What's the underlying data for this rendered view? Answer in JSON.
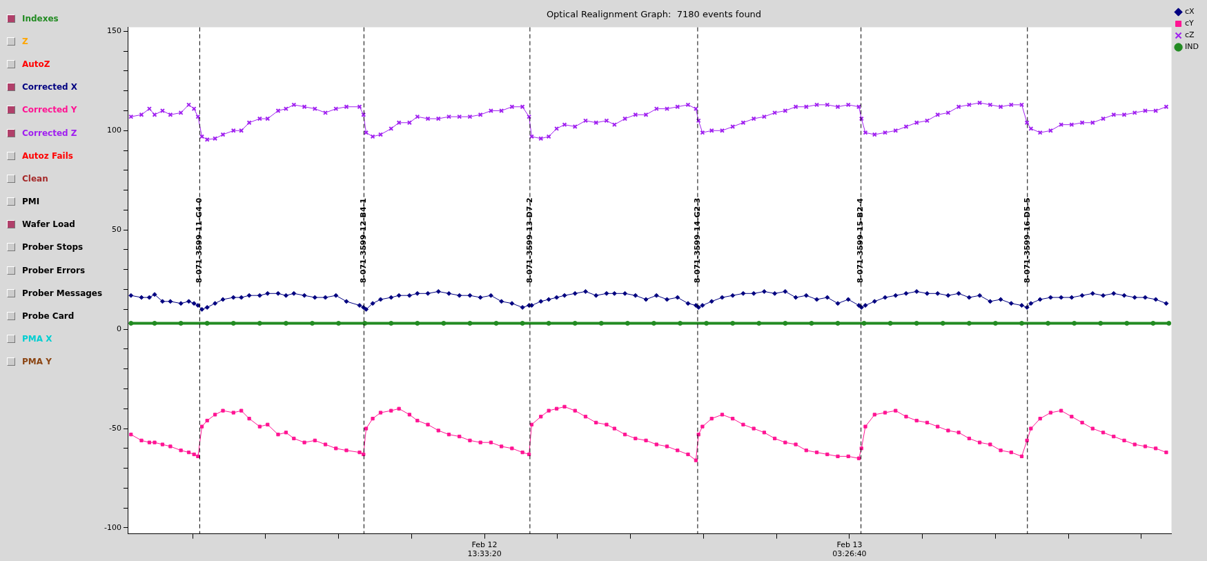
{
  "chart_data": {
    "type": "line",
    "title": "Optical Realignment Graph:  7180 events found",
    "annotations": [
      "Indexes",
      "Z",
      "AutoZ",
      "Corrected X",
      "Corrected Y",
      "Corrected Z",
      "Autoz Fails",
      "Clean",
      "PMI",
      "Wafer Load",
      "Prober Stops",
      "Prober Errors",
      "Prober Messages",
      "Probe Card",
      "PMA X",
      "PMA Y"
    ],
    "x": [
      "--02-12T00:06",
      "--02-12T00:30",
      "--02-12T00:48",
      "--02-12T01:00",
      "--02-12T01:18",
      "--02-12T01:36",
      "--02-12T02:00",
      "--02-12T02:18",
      "--02-12T02:30",
      "--02-12T02:39",
      "--02-12T02:48",
      "--02-12T03:00",
      "--02-12T03:18",
      "--02-12T03:36",
      "--02-12T04:00",
      "--02-12T04:18",
      "--02-12T04:36",
      "--02-12T05:00",
      "--02-12T05:18",
      "--02-12T05:42",
      "--02-12T06:00",
      "--02-12T06:18",
      "--02-12T06:42",
      "--02-12T07:06",
      "--02-12T07:30",
      "--02-12T07:54",
      "--02-12T08:18",
      "--02-12T08:48",
      "--02-12T08:57",
      "--02-12T09:03",
      "--02-12T09:18",
      "--02-12T09:36",
      "--02-12T10:00",
      "--02-12T10:18",
      "--02-12T10:42",
      "--02-12T11:00",
      "--02-12T11:24",
      "--02-12T11:48",
      "--02-12T12:12",
      "--02-12T12:36",
      "--02-12T13:00",
      "--02-12T13:24",
      "--02-12T13:48",
      "--02-12T14:12",
      "--02-12T14:36",
      "--02-12T15:00",
      "--02-12T15:15",
      "--02-12T15:21",
      "--02-12T15:42",
      "--02-12T16:00",
      "--02-12T16:18",
      "--02-12T16:36",
      "--02-12T17:00",
      "--02-12T17:24",
      "--02-12T17:48",
      "--02-12T18:12",
      "--02-12T18:30",
      "--02-12T18:54",
      "--02-12T19:18",
      "--02-12T19:42",
      "--02-12T20:06",
      "--02-12T20:30",
      "--02-12T20:54",
      "--02-12T21:18",
      "--02-12T21:36",
      "--02-12T21:42",
      "--02-12T21:51",
      "--02-12T22:12",
      "--02-12T22:36",
      "--02-12T23:00",
      "--02-12T23:24",
      "--02-12T23:48",
      "--02-13T00:12",
      "--02-13T00:36",
      "--02-13T01:00",
      "--02-13T01:24",
      "--02-13T01:48",
      "--02-13T02:12",
      "--02-13T02:36",
      "--02-13T03:00",
      "--02-13T03:24",
      "--02-13T03:48",
      "--02-13T03:54",
      "--02-13T04:03",
      "--02-13T04:24",
      "--02-13T04:48",
      "--02-13T05:12",
      "--02-13T05:36",
      "--02-13T06:00",
      "--02-13T06:24",
      "--02-13T06:48",
      "--02-13T07:12",
      "--02-13T07:36",
      "--02-13T08:00",
      "--02-13T08:24",
      "--02-13T08:48",
      "--02-13T09:12",
      "--02-13T09:36",
      "--02-13T10:00",
      "--02-13T10:12",
      "--02-13T10:21",
      "--02-13T10:42",
      "--02-13T11:06",
      "--02-13T11:30",
      "--02-13T11:54",
      "--02-13T12:18",
      "--02-13T12:42",
      "--02-13T13:06",
      "--02-13T13:30",
      "--02-13T13:54",
      "--02-13T14:18",
      "--02-13T14:42",
      "--02-13T15:06",
      "--02-13T15:30"
    ],
    "series": [
      {
        "name": "cX",
        "color": "#000080",
        "marker": "diamond",
        "values": [
          17,
          16,
          16,
          17.5,
          14,
          14,
          13,
          14,
          13,
          12,
          10,
          11,
          13,
          15,
          16,
          16,
          17,
          17,
          18,
          18,
          17,
          18,
          17,
          16,
          16,
          17,
          14,
          12,
          11,
          10,
          13,
          15,
          16,
          17,
          17,
          18,
          18,
          19,
          18,
          17,
          17,
          16,
          17,
          14,
          13,
          11,
          12,
          12,
          14,
          15,
          16,
          17,
          18,
          19,
          17,
          18,
          18,
          18,
          17,
          15,
          17,
          15,
          16,
          13,
          12,
          11,
          12,
          14,
          16,
          17,
          18,
          18,
          19,
          18,
          19,
          16,
          17,
          15,
          16,
          13,
          15,
          12,
          11,
          12,
          14,
          16,
          17,
          18,
          19,
          18,
          18,
          17,
          18,
          16,
          17,
          14,
          15,
          13,
          12,
          11,
          13,
          15,
          16,
          16,
          16,
          17,
          18,
          17,
          18,
          17,
          16,
          16,
          15,
          13
        ]
      },
      {
        "name": "cY",
        "color": "#ff1493",
        "marker": "square",
        "values": [
          -53,
          -56,
          -57,
          -57,
          -58,
          -59,
          -61,
          -62,
          -63,
          -64,
          -49,
          -46,
          -43,
          -41,
          -42,
          -41,
          -45,
          -49,
          -48,
          -53,
          -52,
          -55,
          -57,
          -56,
          -58,
          -60,
          -61,
          -62,
          -63,
          -50,
          -45,
          -42,
          -41,
          -40,
          -43,
          -46,
          -48,
          -51,
          -53,
          -54,
          -56,
          -57,
          -57,
          -59,
          -60,
          -62,
          -63,
          -48,
          -44,
          -41,
          -40,
          -39,
          -41,
          -44,
          -47,
          -48,
          -50,
          -53,
          -55,
          -56,
          -58,
          -59,
          -61,
          -63,
          -66,
          -53,
          -49,
          -45,
          -43,
          -45,
          -48,
          -50,
          -52,
          -55,
          -57,
          -58,
          -61,
          -62,
          -63,
          -64,
          -64,
          -65,
          -60,
          -49,
          -43,
          -42,
          -41,
          -44,
          -46,
          -47,
          -49,
          -51,
          -52,
          -55,
          -57,
          -58,
          -61,
          -62,
          -64,
          -56,
          -50,
          -45,
          -42,
          -41,
          -44,
          -47,
          -50,
          -52,
          -54,
          -56,
          -58,
          -59,
          -60,
          -62
        ]
      },
      {
        "name": "cZ",
        "color": "#a020f0",
        "marker": "cross",
        "values": [
          107,
          108,
          111,
          108,
          110,
          108,
          109,
          113,
          111,
          107,
          97,
          95.5,
          96,
          98,
          100,
          100,
          104,
          106,
          106,
          110,
          111,
          113,
          112,
          111,
          109,
          111,
          112,
          112,
          108,
          99,
          97,
          98,
          101,
          104,
          104,
          107,
          106,
          106,
          107,
          107,
          107,
          108,
          110,
          110,
          112,
          112,
          107,
          97,
          96,
          97,
          101,
          103,
          102,
          105,
          104,
          105,
          103,
          106,
          108,
          108,
          111,
          111,
          112,
          113,
          111,
          105,
          99,
          100,
          100,
          102,
          104,
          106,
          107,
          109,
          110,
          112,
          112,
          113,
          113,
          112,
          113,
          112,
          106,
          99,
          98,
          99,
          100,
          102,
          104,
          105,
          108,
          109,
          112,
          113,
          114,
          113,
          112,
          113,
          113,
          104,
          101,
          99,
          100,
          103,
          103,
          104,
          104,
          106,
          108,
          108,
          109,
          110,
          110,
          112
        ]
      },
      {
        "name": "IND",
        "color": "#228b22",
        "marker": "circle",
        "x": [
          "--02-12T00:06",
          "--02-12T01:00",
          "--02-12T02:00",
          "--02-12T03:00",
          "--02-12T04:00",
          "--02-12T05:00",
          "--02-12T06:00",
          "--02-12T07:00",
          "--02-12T08:00",
          "--02-12T09:00",
          "--02-12T10:00",
          "--02-12T11:00",
          "--02-12T12:00",
          "--02-12T13:00",
          "--02-12T14:00",
          "--02-12T15:00",
          "--02-12T16:00",
          "--02-12T17:00",
          "--02-12T18:00",
          "--02-12T19:00",
          "--02-12T20:00",
          "--02-12T21:00",
          "--02-12T22:00",
          "--02-12T23:00",
          "--02-13T00:00",
          "--02-13T01:00",
          "--02-13T02:00",
          "--02-13T03:00",
          "--02-13T04:00",
          "--02-13T05:00",
          "--02-13T06:00",
          "--02-13T07:00",
          "--02-13T08:00",
          "--02-13T09:00",
          "--02-13T10:00",
          "--02-13T11:00",
          "--02-13T12:00",
          "--02-13T13:00",
          "--02-13T14:00",
          "--02-13T15:00",
          "--02-13T15:36"
        ],
        "values": [
          3,
          3,
          3,
          3,
          3,
          3,
          3,
          3,
          3,
          3,
          3,
          3,
          3,
          3,
          3,
          3,
          3,
          3,
          3,
          3,
          3,
          3,
          3,
          3,
          3,
          3,
          3,
          3,
          3,
          3,
          3,
          3,
          3,
          3,
          3,
          3,
          3,
          3,
          3,
          3,
          3
        ]
      }
    ],
    "ref_lines": [
      {
        "axis": "x",
        "value": "--02-12T02:43",
        "label": "8-071-3599-11-G4-0",
        "color": "#000000",
        "line_style": "dashed"
      },
      {
        "axis": "x",
        "value": "--02-12T08:58",
        "label": "8-071-3599-12-B4-1",
        "color": "#000000",
        "line_style": "dashed"
      },
      {
        "axis": "x",
        "value": "--02-12T15:17",
        "label": "8-071-3599-13-D7-2",
        "color": "#000000",
        "line_style": "dashed"
      },
      {
        "axis": "x",
        "value": "--02-12T21:40",
        "label": "8-071-3599-14-G2-3",
        "color": "#000000",
        "line_style": "dashed"
      },
      {
        "axis": "x",
        "value": "--02-13T03:53",
        "label": "8-071-3599-15-B2-4",
        "color": "#000000",
        "line_style": "dashed"
      },
      {
        "axis": "x",
        "value": "--02-13T10:13",
        "label": "8-071-3599-16-D5-5",
        "color": "#000000",
        "line_style": "dashed"
      }
    ],
    "xlim": [
      "--02-12T00:00",
      "--02-13T15:42"
    ],
    "xticks": [
      {
        "value": "--02-12T02:26:40",
        "label": null
      },
      {
        "value": "--02-12T05:13:20",
        "label": null
      },
      {
        "value": "--02-12T08:00:00",
        "label": null
      },
      {
        "value": "--02-12T10:46:40",
        "label": null
      },
      {
        "value": "--02-12T13:33:20",
        "label": "Feb 12 13:33:20"
      },
      {
        "value": "--02-12T16:20:00",
        "label": null
      },
      {
        "value": "--02-12T19:06:40",
        "label": null
      },
      {
        "value": "--02-12T21:53:20",
        "label": null
      },
      {
        "value": "--02-13T00:40:00",
        "label": null
      },
      {
        "value": "--02-13T03:26:40",
        "label": "Feb 13 03:26:40"
      },
      {
        "value": "--02-13T06:13:20",
        "label": null
      },
      {
        "value": "--02-13T09:00:00",
        "label": null
      },
      {
        "value": "--02-13T11:46:40",
        "label": null
      },
      {
        "value": "--02-13T14:33:20",
        "label": null
      }
    ],
    "ylim": [
      -103,
      152
    ],
    "yticks": [
      -100,
      {
        "value": -90,
        "label": null
      },
      {
        "value": -80,
        "label": null
      },
      {
        "value": -70,
        "label": null
      },
      {
        "value": -60,
        "label": null
      },
      -50,
      {
        "value": -40,
        "label": null
      },
      {
        "value": -30,
        "label": null
      },
      {
        "value": -20,
        "label": null
      },
      {
        "value": -10,
        "label": null
      },
      0,
      {
        "value": 10,
        "label": null
      },
      {
        "value": 20,
        "label": null
      },
      {
        "value": 30,
        "label": null
      },
      {
        "value": 40,
        "label": null
      },
      50,
      {
        "value": 60,
        "label": null
      },
      {
        "value": 70,
        "label": null
      },
      {
        "value": 80,
        "label": null
      },
      {
        "value": 90,
        "label": null
      },
      100,
      {
        "value": 110,
        "label": null
      },
      {
        "value": 120,
        "label": null
      },
      {
        "value": 130,
        "label": null
      },
      {
        "value": 140,
        "label": null
      },
      150
    ],
    "grid": false,
    "legend": "top right",
    "line_style": "solid"
  }
}
